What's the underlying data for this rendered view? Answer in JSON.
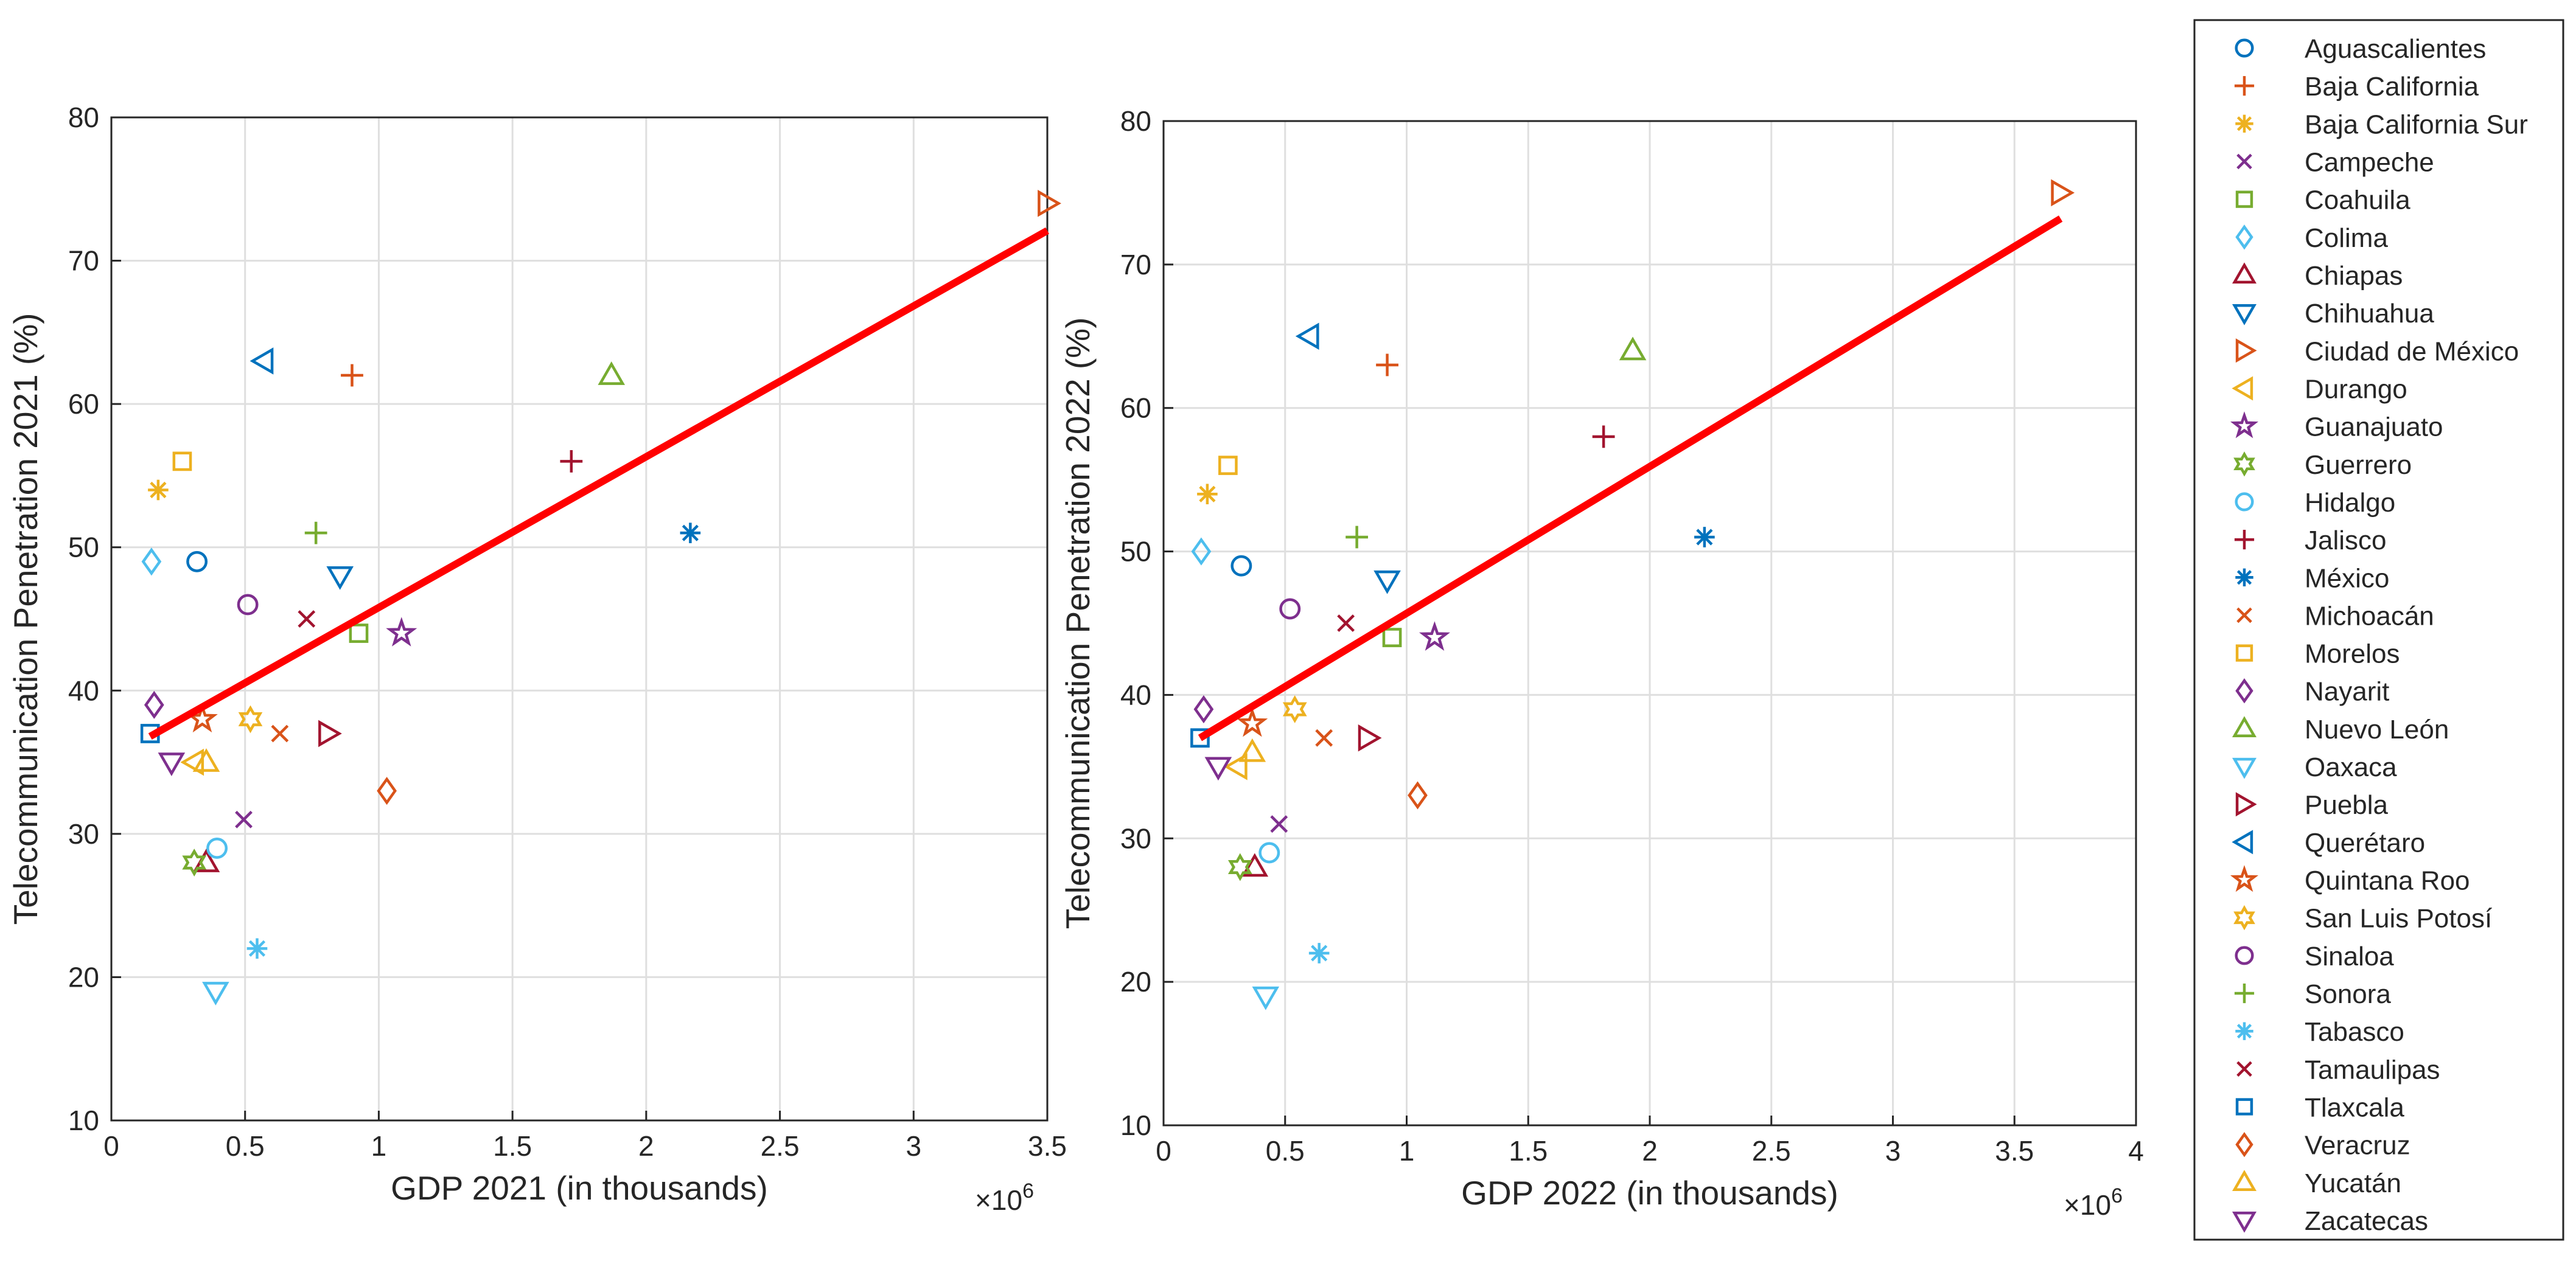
{
  "colors": {
    "blue": "#0072BD",
    "orange": "#D95319",
    "yellow": "#EDB120",
    "purple": "#7E2F8E",
    "green": "#77AC30",
    "cyan": "#4DBEEE",
    "maroon": "#A2142F",
    "fit": "#FF0000",
    "grid": "#DFDFDF",
    "axis": "#262626"
  },
  "legend": {
    "entries": [
      {
        "name": "Aguascalientes",
        "marker": "circle-icon",
        "color": "#0072BD"
      },
      {
        "name": "Baja California",
        "marker": "plus-icon",
        "color": "#D95319"
      },
      {
        "name": "Baja California Sur",
        "marker": "asterisk-icon",
        "color": "#EDB120"
      },
      {
        "name": "Campeche",
        "marker": "cross-icon",
        "color": "#7E2F8E"
      },
      {
        "name": "Coahuila",
        "marker": "square-icon",
        "color": "#77AC30"
      },
      {
        "name": "Colima",
        "marker": "diamond-icon",
        "color": "#4DBEEE"
      },
      {
        "name": "Chiapas",
        "marker": "triangle-up-icon",
        "color": "#A2142F"
      },
      {
        "name": "Chihuahua",
        "marker": "triangle-down-icon",
        "color": "#0072BD"
      },
      {
        "name": "Ciudad de México",
        "marker": "triangle-right-icon",
        "color": "#D95319"
      },
      {
        "name": "Durango",
        "marker": "triangle-left-icon",
        "color": "#EDB120"
      },
      {
        "name": "Guanajuato",
        "marker": "pentagram-icon",
        "color": "#7E2F8E"
      },
      {
        "name": "Guerrero",
        "marker": "hexagram-icon",
        "color": "#77AC30"
      },
      {
        "name": "Hidalgo",
        "marker": "circle-icon",
        "color": "#4DBEEE"
      },
      {
        "name": "Jalisco",
        "marker": "plus-icon",
        "color": "#A2142F"
      },
      {
        "name": "México",
        "marker": "asterisk-icon",
        "color": "#0072BD"
      },
      {
        "name": "Michoacán",
        "marker": "cross-icon",
        "color": "#D95319"
      },
      {
        "name": "Morelos",
        "marker": "square-icon",
        "color": "#EDB120"
      },
      {
        "name": "Nayarit",
        "marker": "diamond-icon",
        "color": "#7E2F8E"
      },
      {
        "name": "Nuevo León",
        "marker": "triangle-up-icon",
        "color": "#77AC30"
      },
      {
        "name": "Oaxaca",
        "marker": "triangle-down-icon",
        "color": "#4DBEEE"
      },
      {
        "name": "Puebla",
        "marker": "triangle-right-icon",
        "color": "#A2142F"
      },
      {
        "name": "Querétaro",
        "marker": "triangle-left-icon",
        "color": "#0072BD"
      },
      {
        "name": "Quintana Roo",
        "marker": "pentagram-icon",
        "color": "#D95319"
      },
      {
        "name": "San Luis Potosí",
        "marker": "hexagram-icon",
        "color": "#EDB120"
      },
      {
        "name": "Sinaloa",
        "marker": "circle-icon",
        "color": "#7E2F8E"
      },
      {
        "name": "Sonora",
        "marker": "plus-icon",
        "color": "#77AC30"
      },
      {
        "name": "Tabasco",
        "marker": "asterisk-icon",
        "color": "#4DBEEE"
      },
      {
        "name": "Tamaulipas",
        "marker": "cross-icon",
        "color": "#A2142F"
      },
      {
        "name": "Tlaxcala",
        "marker": "square-icon",
        "color": "#0072BD"
      },
      {
        "name": "Veracruz",
        "marker": "diamond-icon",
        "color": "#D95319"
      },
      {
        "name": "Yucatán",
        "marker": "triangle-up-icon",
        "color": "#EDB120"
      },
      {
        "name": "Zacatecas",
        "marker": "triangle-down-icon",
        "color": "#7E2F8E"
      }
    ]
  },
  "chart_data": [
    {
      "type": "scatter",
      "title": "",
      "xlabel": "GDP 2021 (in thousands)",
      "ylabel": "Telecommunication Penetration 2021 (%)",
      "x_exponent_label": "×10",
      "x_exponent": "6",
      "xlim": [
        0,
        3500000
      ],
      "ylim": [
        10,
        80
      ],
      "xticks": [
        0,
        500000,
        1000000,
        1500000,
        2000000,
        2500000,
        3000000,
        3500000
      ],
      "xtick_labels": [
        "0",
        "0.5",
        "1",
        "1.5",
        "2",
        "2.5",
        "3",
        "3.5"
      ],
      "yticks": [
        10,
        20,
        30,
        40,
        50,
        60,
        70,
        80
      ],
      "ytick_labels": [
        "10",
        "20",
        "30",
        "40",
        "50",
        "60",
        "70",
        "80"
      ],
      "grid": true,
      "points": [
        {
          "state": "Aguascalientes",
          "x": 320000,
          "y": 49
        },
        {
          "state": "Baja California",
          "x": 900000,
          "y": 62
        },
        {
          "state": "Baja California Sur",
          "x": 175000,
          "y": 54
        },
        {
          "state": "Campeche",
          "x": 495000,
          "y": 31
        },
        {
          "state": "Coahuila",
          "x": 925000,
          "y": 44
        },
        {
          "state": "Colima",
          "x": 150000,
          "y": 49
        },
        {
          "state": "Chiapas",
          "x": 355000,
          "y": 28
        },
        {
          "state": "Chihuahua",
          "x": 855000,
          "y": 48
        },
        {
          "state": "Ciudad de México",
          "x": 3500000,
          "y": 74
        },
        {
          "state": "Durango",
          "x": 310000,
          "y": 35
        },
        {
          "state": "Guanajuato",
          "x": 1085000,
          "y": 44
        },
        {
          "state": "Guerrero",
          "x": 310000,
          "y": 28
        },
        {
          "state": "Hidalgo",
          "x": 395000,
          "y": 29
        },
        {
          "state": "Jalisco",
          "x": 1720000,
          "y": 56
        },
        {
          "state": "México",
          "x": 2165000,
          "y": 51
        },
        {
          "state": "Michoacán",
          "x": 630000,
          "y": 37
        },
        {
          "state": "Morelos",
          "x": 265000,
          "y": 56
        },
        {
          "state": "Nayarit",
          "x": 160000,
          "y": 39
        },
        {
          "state": "Nuevo León",
          "x": 1870000,
          "y": 62
        },
        {
          "state": "Oaxaca",
          "x": 390000,
          "y": 19
        },
        {
          "state": "Puebla",
          "x": 810000,
          "y": 37
        },
        {
          "state": "Querétaro",
          "x": 570000,
          "y": 63
        },
        {
          "state": "Quintana Roo",
          "x": 340000,
          "y": 38
        },
        {
          "state": "San Luis Potosí",
          "x": 520000,
          "y": 38
        },
        {
          "state": "Sinaloa",
          "x": 510000,
          "y": 46
        },
        {
          "state": "Sonora",
          "x": 765000,
          "y": 51
        },
        {
          "state": "Tabasco",
          "x": 545000,
          "y": 22
        },
        {
          "state": "Tamaulipas",
          "x": 730000,
          "y": 45
        },
        {
          "state": "Tlaxcala",
          "x": 145000,
          "y": 37
        },
        {
          "state": "Veracruz",
          "x": 1030000,
          "y": 33
        },
        {
          "state": "Yucatán",
          "x": 355000,
          "y": 35
        },
        {
          "state": "Zacatecas",
          "x": 225000,
          "y": 35
        }
      ],
      "fit_line": {
        "name": "linear fit",
        "x": [
          145000,
          3500000
        ],
        "y": [
          36.8,
          72.1
        ]
      }
    },
    {
      "type": "scatter",
      "title": "",
      "xlabel": "GDP 2022 (in thousands)",
      "ylabel": "Telecommunication Penetration 2022 (%)",
      "x_exponent_label": "×10",
      "x_exponent": "6",
      "xlim": [
        0,
        4000000
      ],
      "ylim": [
        10,
        80
      ],
      "xticks": [
        0,
        500000,
        1000000,
        1500000,
        2000000,
        2500000,
        3000000,
        3500000,
        4000000
      ],
      "xtick_labels": [
        "0",
        "0.5",
        "1",
        "1.5",
        "2",
        "2.5",
        "3",
        "3.5",
        "4"
      ],
      "yticks": [
        10,
        20,
        30,
        40,
        50,
        60,
        70,
        80
      ],
      "ytick_labels": [
        "10",
        "20",
        "30",
        "40",
        "50",
        "60",
        "70",
        "80"
      ],
      "grid": true,
      "points": [
        {
          "state": "Aguascalientes",
          "x": 320000,
          "y": 49
        },
        {
          "state": "Baja California",
          "x": 920000,
          "y": 63
        },
        {
          "state": "Baja California Sur",
          "x": 180000,
          "y": 54
        },
        {
          "state": "Campeche",
          "x": 475000,
          "y": 31
        },
        {
          "state": "Coahuila",
          "x": 940000,
          "y": 44
        },
        {
          "state": "Colima",
          "x": 155000,
          "y": 50
        },
        {
          "state": "Chiapas",
          "x": 375000,
          "y": 28
        },
        {
          "state": "Chihuahua",
          "x": 920000,
          "y": 48
        },
        {
          "state": "Ciudad de México",
          "x": 3690000,
          "y": 75
        },
        {
          "state": "Durango",
          "x": 305000,
          "y": 35
        },
        {
          "state": "Guanajuato",
          "x": 1115000,
          "y": 44
        },
        {
          "state": "Guerrero",
          "x": 315000,
          "y": 28
        },
        {
          "state": "Hidalgo",
          "x": 435000,
          "y": 29
        },
        {
          "state": "Jalisco",
          "x": 1810000,
          "y": 58
        },
        {
          "state": "México",
          "x": 2225000,
          "y": 51
        },
        {
          "state": "Michoacán",
          "x": 660000,
          "y": 37
        },
        {
          "state": "Morelos",
          "x": 265000,
          "y": 56
        },
        {
          "state": "Nayarit",
          "x": 165000,
          "y": 39
        },
        {
          "state": "Nuevo León",
          "x": 1930000,
          "y": 64
        },
        {
          "state": "Oaxaca",
          "x": 420000,
          "y": 19
        },
        {
          "state": "Puebla",
          "x": 840000,
          "y": 37
        },
        {
          "state": "Querétaro",
          "x": 600000,
          "y": 65
        },
        {
          "state": "Quintana Roo",
          "x": 365000,
          "y": 38
        },
        {
          "state": "San Luis Potosí",
          "x": 540000,
          "y": 39
        },
        {
          "state": "Sinaloa",
          "x": 520000,
          "y": 46
        },
        {
          "state": "Sonora",
          "x": 795000,
          "y": 51
        },
        {
          "state": "Tabasco",
          "x": 640000,
          "y": 22
        },
        {
          "state": "Tamaulipas",
          "x": 750000,
          "y": 45
        },
        {
          "state": "Tlaxcala",
          "x": 150000,
          "y": 37
        },
        {
          "state": "Veracruz",
          "x": 1045000,
          "y": 33
        },
        {
          "state": "Yucatán",
          "x": 365000,
          "y": 36
        },
        {
          "state": "Zacatecas",
          "x": 225000,
          "y": 35
        }
      ],
      "fit_line": {
        "name": "linear fit",
        "x": [
          150000,
          3690000
        ],
        "y": [
          37.0,
          73.2
        ]
      }
    }
  ]
}
